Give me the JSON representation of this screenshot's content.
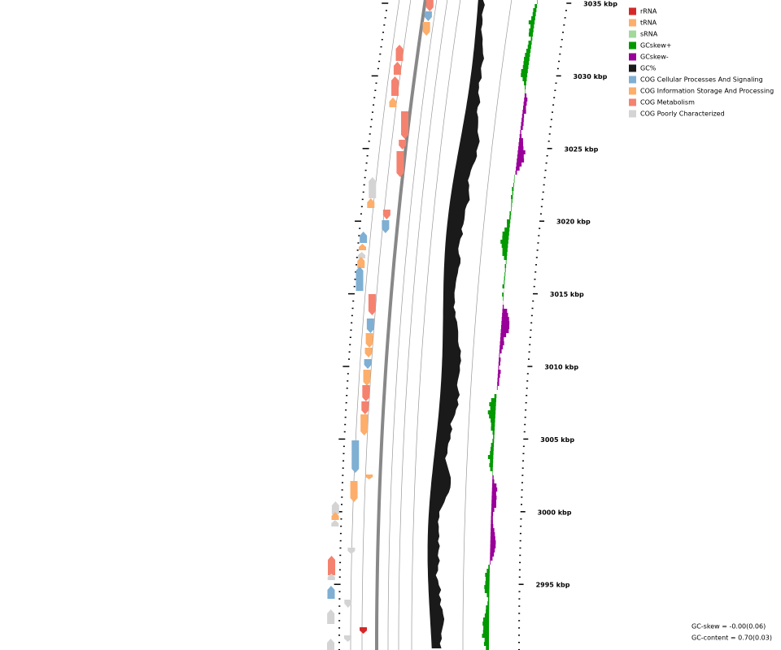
{
  "scale_labels": [
    "3035 kbp",
    "3030 kbp",
    "3025 kbp",
    "3020 kbp",
    "3015 kbp",
    "3010 kbp",
    "3005 kbp",
    "3000 kbp",
    "2995 kbp"
  ],
  "legend": [
    {
      "label": "rRNA",
      "color": "#d62728"
    },
    {
      "label": "tRNA",
      "color": "#fdae6b"
    },
    {
      "label": "sRNA",
      "color": "#a1d99b"
    },
    {
      "label": "GCskew+",
      "color": "#009900"
    },
    {
      "label": "GCskew-",
      "color": "#990099"
    },
    {
      "label": "GC%",
      "color": "#1a1a1a"
    },
    {
      "label": "COG Cellular Processes And Signaling",
      "color": "#7fafd3"
    },
    {
      "label": "COG Information Storage And Processing",
      "color": "#fdae6b"
    },
    {
      "label": "COG Metabolism",
      "color": "#f4826f"
    },
    {
      "label": "COG Poorly Characterized",
      "color": "#d4d4d4"
    }
  ],
  "stats": [
    "GC-skew = -0.00(0.06)",
    "GC-content = 0.70(0.03)"
  ]
}
